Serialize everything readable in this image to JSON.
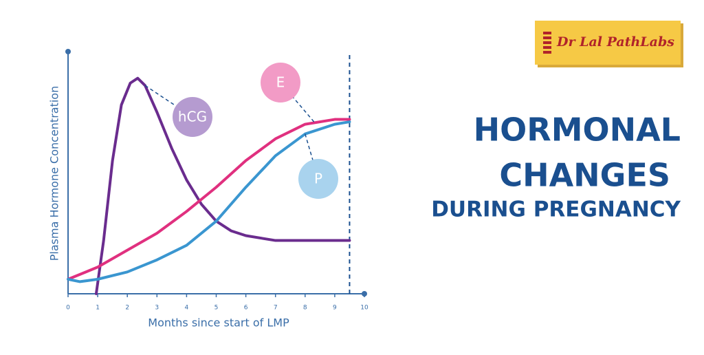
{
  "logo": "Dr Lal PathLabs",
  "heading": [
    "HORMONAL",
    "CHANGES",
    "DURING PREGNANCY"
  ],
  "chart_data": {
    "type": "line",
    "x_label": "Months since start of LMP",
    "y_label": "Plasma Hormone Concentration",
    "xlim": [
      0,
      10
    ],
    "xticks": [
      0,
      1,
      2,
      3,
      4,
      5,
      6,
      7,
      8,
      9,
      10
    ],
    "ylim": [
      0,
      100
    ],
    "vline": 9.5,
    "series": [
      {
        "name": "hCG",
        "color": "#6a2c8e",
        "x": [
          0.95,
          1.2,
          1.5,
          1.8,
          2.1,
          2.35,
          2.6,
          3,
          3.5,
          4,
          4.5,
          5,
          5.5,
          6,
          7,
          8,
          9,
          9.5
        ],
        "values": [
          0,
          22,
          55,
          78,
          87,
          89,
          86,
          75,
          60,
          47,
          37,
          30,
          26,
          24,
          22,
          22,
          22,
          22
        ]
      },
      {
        "name": "E",
        "color": "#e0307f",
        "x": [
          0,
          1,
          2,
          3,
          4,
          5,
          6,
          7,
          8,
          9,
          9.5
        ],
        "values": [
          6,
          11,
          18,
          25,
          34,
          44,
          55,
          64,
          70,
          72,
          72
        ]
      },
      {
        "name": "P",
        "color": "#3a96d0",
        "x": [
          0,
          0.4,
          1,
          2,
          3,
          4,
          5,
          6,
          7,
          8,
          9,
          9.5
        ],
        "values": [
          6,
          5,
          6,
          9,
          14,
          20,
          30,
          44,
          57,
          66,
          70,
          71
        ]
      }
    ]
  }
}
